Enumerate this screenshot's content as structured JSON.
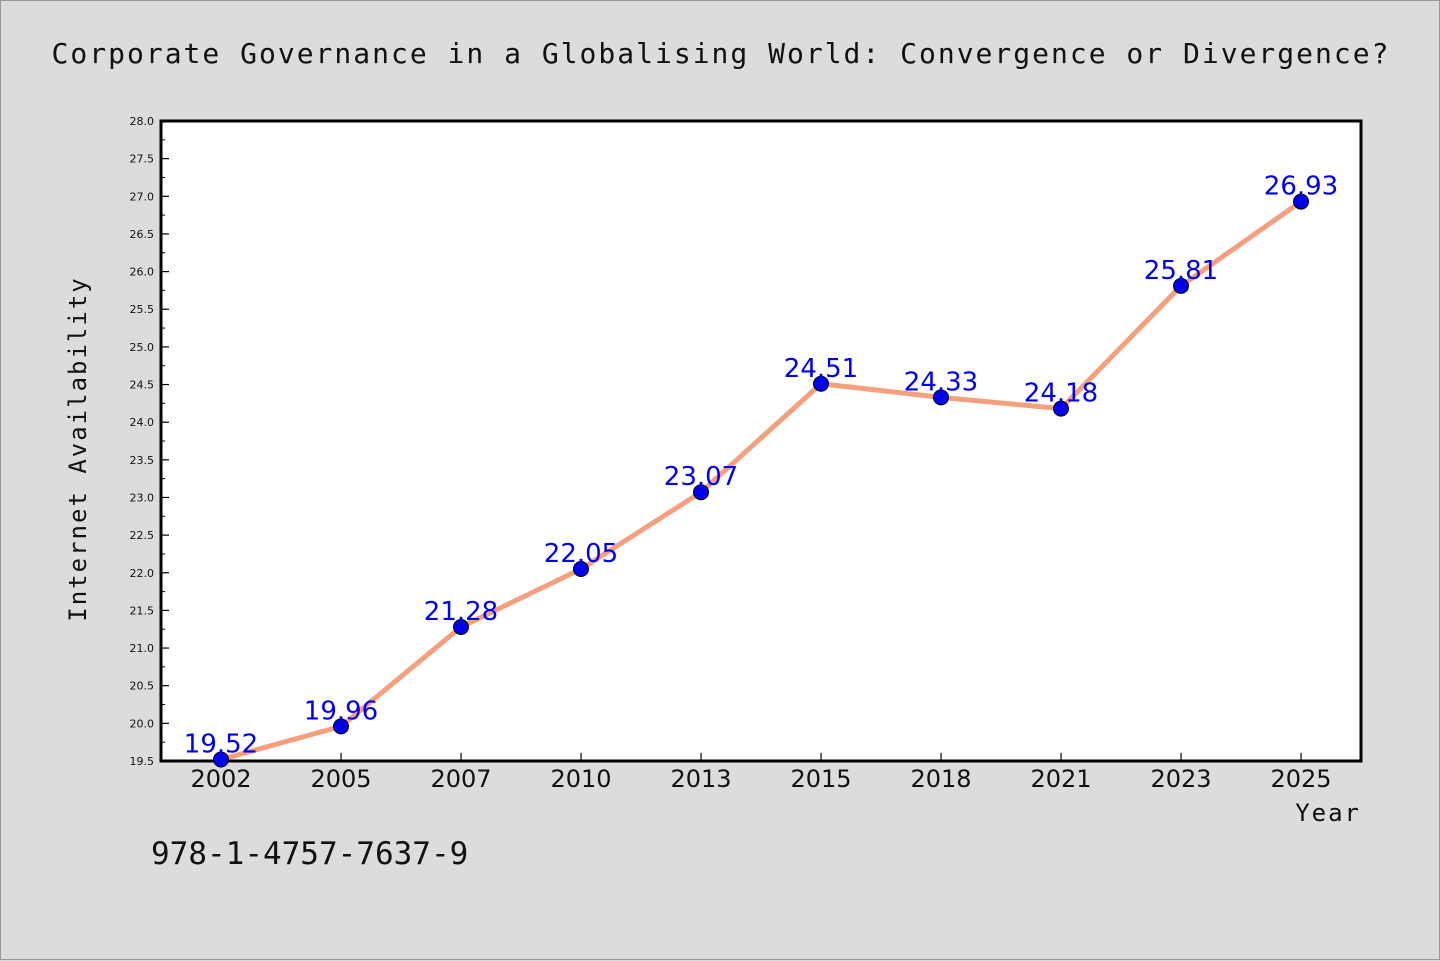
{
  "colors": {
    "background": "#dcdcdc",
    "plot_background": "#ffffff",
    "line": "#f4a07f",
    "marker": "#0000ee",
    "data_label": "#0000ee"
  },
  "footer": {
    "isbn": "978-1-4757-7637-9"
  },
  "chart_data": {
    "type": "line",
    "title": "Corporate Governance in a Globalising World: Convergence or Divergence?",
    "xlabel": "Year",
    "ylabel": "Internet Availability",
    "categories": [
      "2002",
      "2005",
      "2007",
      "2010",
      "2013",
      "2015",
      "2018",
      "2021",
      "2023",
      "2025"
    ],
    "series": [
      {
        "values": [
          19.52,
          19.96,
          21.28,
          22.05,
          23.07,
          24.51,
          24.33,
          24.18,
          25.81,
          26.93
        ]
      }
    ],
    "data_labels": [
      "19.52",
      "19.96",
      "21.28",
      "22.05",
      "23.07",
      "24.51",
      "24.33",
      "24.18",
      "25.81",
      "26.93"
    ],
    "ylim": [
      19.5,
      28.0
    ],
    "yticks": [
      "19.5",
      "20.0",
      "20.5",
      "21.0",
      "21.5",
      "22.0",
      "22.5",
      "23.0",
      "23.5",
      "24.0",
      "24.5",
      "25.0",
      "25.5",
      "26.0",
      "26.5",
      "27.0",
      "27.5",
      "28.0"
    ],
    "grid": false,
    "legend": "none"
  }
}
